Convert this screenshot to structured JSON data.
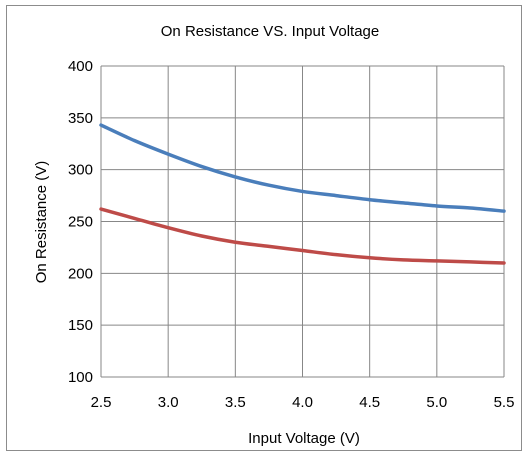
{
  "chart_data": {
    "type": "line",
    "title": "On Resistance VS. Input Voltage",
    "xlabel": "Input Voltage (V)",
    "ylabel": "On Resistance (V)",
    "xlim": [
      2.5,
      5.5
    ],
    "ylim": [
      100,
      400
    ],
    "x_ticks": [
      "2.5",
      "3.0",
      "3.5",
      "4.0",
      "4.5",
      "5.0",
      "5.5"
    ],
    "y_ticks": [
      "100",
      "150",
      "200",
      "250",
      "300",
      "350",
      "400"
    ],
    "grid": true,
    "legend": "none",
    "series": [
      {
        "color": "#4a7ebb",
        "x": [
          2.5,
          2.75,
          3.0,
          3.25,
          3.5,
          3.75,
          4.0,
          4.25,
          4.5,
          4.75,
          5.0,
          5.25,
          5.5
        ],
        "y": [
          343,
          328,
          315,
          303,
          293,
          285,
          279,
          275,
          271,
          268,
          265,
          263,
          260
        ]
      },
      {
        "color": "#be4b48",
        "x": [
          2.5,
          2.75,
          3.0,
          3.25,
          3.5,
          3.75,
          4.0,
          4.25,
          4.5,
          4.75,
          5.0,
          5.25,
          5.5
        ],
        "y": [
          262,
          253,
          244,
          236,
          230,
          226,
          222,
          218,
          215,
          213,
          212,
          211,
          210
        ]
      }
    ]
  }
}
